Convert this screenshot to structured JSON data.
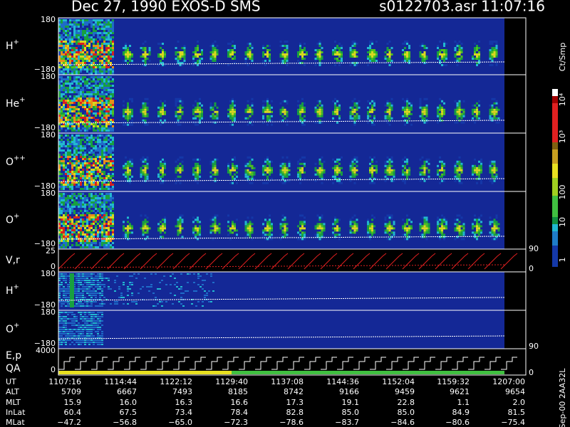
{
  "header": {
    "title": "Dec 27, 1990   EXOS-D SMS",
    "file": "s0122703.asr  11:07:16"
  },
  "panels": [
    {
      "label": "H",
      "sup": "+",
      "left_ticks": [
        "180",
        "−180"
      ],
      "right_ticks": []
    },
    {
      "label": "He",
      "sup": "+",
      "left_ticks": [
        "180",
        "−180"
      ],
      "right_ticks": []
    },
    {
      "label": "O",
      "sup": "++",
      "left_ticks": [
        "180",
        "−180"
      ],
      "right_ticks": []
    },
    {
      "label": "O",
      "sup": "+",
      "left_ticks": [
        "180",
        "−180"
      ],
      "right_ticks": []
    },
    {
      "label": "V,r",
      "left_ticks": [
        "25",
        "0"
      ],
      "right_ticks": [
        "90",
        "0"
      ]
    },
    {
      "label": "H",
      "sup": "+",
      "left_ticks": [
        "180",
        "−180"
      ],
      "right_ticks": []
    },
    {
      "label": "O",
      "sup": "+",
      "left_ticks": [
        "180",
        "−180"
      ],
      "right_ticks": [
        "90"
      ]
    },
    {
      "label": "E,p",
      "label2": "QA",
      "left_ticks": [
        "4000",
        "0"
      ],
      "right_ticks": [
        "0"
      ]
    }
  ],
  "colorbar": {
    "unit": "Ct/Smp",
    "ticks": [
      "10⁴",
      "10³",
      "100",
      "10",
      "1"
    ]
  },
  "table": {
    "rows": [
      {
        "label": "UT",
        "values": [
          "1107:16",
          "1114:44",
          "1122:12",
          "1129:40",
          "1137:08",
          "1144:36",
          "1152:04",
          "1159:32",
          "1207:00"
        ]
      },
      {
        "label": "ALT",
        "values": [
          "5709",
          "6667",
          "7493",
          "8185",
          "8742",
          "9166",
          "9459",
          "9621",
          "9654"
        ]
      },
      {
        "label": "MLT",
        "values": [
          "15.9",
          "16.0",
          "16.3",
          "16.6",
          "17.3",
          "19.1",
          "22.8",
          "1.1",
          "2.0"
        ]
      },
      {
        "label": "InLat",
        "values": [
          "60.4",
          "67.5",
          "73.4",
          "78.4",
          "82.8",
          "85.0",
          "85.0",
          "84.9",
          "81.5"
        ]
      },
      {
        "label": "MLat",
        "values": [
          "−47.2",
          "−56.8",
          "−65.0",
          "−72.3",
          "−78.6",
          "−83.7",
          "−84.6",
          "−80.6",
          "−75.4"
        ]
      }
    ]
  },
  "footer": "Sep-00  2AA32L"
}
